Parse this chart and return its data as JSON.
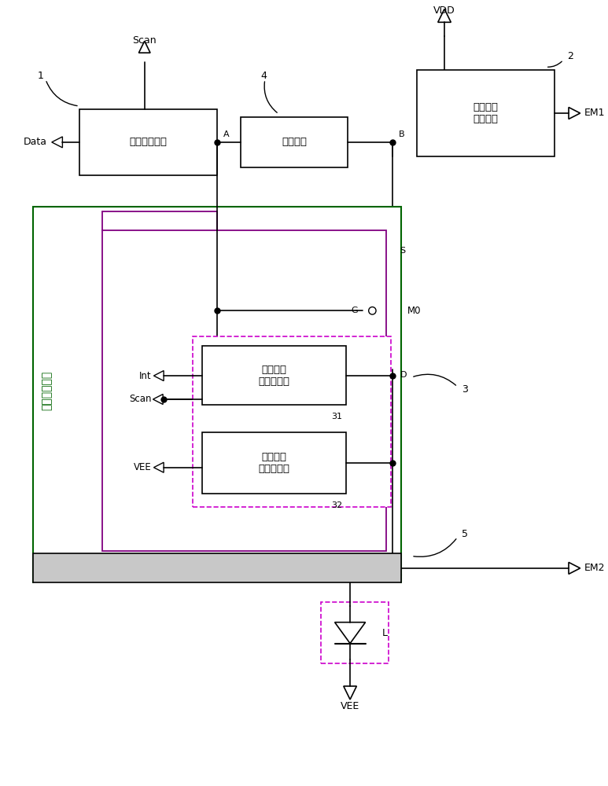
{
  "bg_color": "#ffffff",
  "line_color": "#000000",
  "green_color": "#006400",
  "purple_color": "#800080",
  "dashed_color": "#cc00cc",
  "fig_width": 7.73,
  "fig_height": 10.0,
  "labels": {
    "VDD": "VDD",
    "VEE": "VEE",
    "Data": "Data",
    "Scan_top": "Scan",
    "Int": "Int",
    "Scan_mid": "Scan",
    "VEE_left": "VEE",
    "EM1": "EM1",
    "EM2": "EM2",
    "A": "A",
    "B": "B",
    "G": "G",
    "S": "S",
    "D": "D",
    "M0": "M0",
    "L": "L",
    "num1": "1",
    "num2": "2",
    "num3": "3",
    "num4": "4",
    "num5": "5",
    "num31": "31",
    "num32": "32",
    "box1_text": "数据写入模块",
    "box2_text": "存储模块",
    "box3_text": "电源电压\n控制模块",
    "box31_text": "第一导通\n控制子模块",
    "box32_text": "第二导通\n控制子模块",
    "big_box_text": "发光控制模块"
  }
}
